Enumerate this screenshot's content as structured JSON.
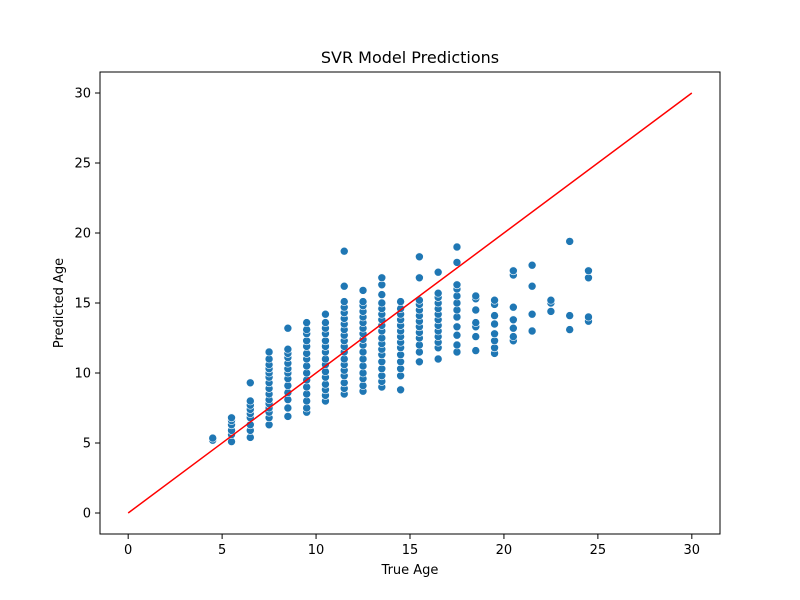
{
  "chart_data": {
    "type": "scatter",
    "title": "SVR Model Predictions",
    "xlabel": "True Age",
    "ylabel": "Predicted Age",
    "xlim": [
      -1.5,
      31.5
    ],
    "ylim": [
      -1.5,
      31.5
    ],
    "xticks": [
      0,
      5,
      10,
      15,
      20,
      25,
      30
    ],
    "yticks": [
      0,
      5,
      10,
      15,
      20,
      25,
      30
    ],
    "grid": false,
    "marker_color": "#1f77b4",
    "line_color": "#ff0000",
    "reference_line": {
      "x": [
        0,
        30
      ],
      "y": [
        0,
        30
      ]
    },
    "points": [
      [
        4.5,
        5.2
      ],
      [
        4.5,
        5.35
      ],
      [
        5.5,
        5.1
      ],
      [
        5.5,
        5.6
      ],
      [
        5.5,
        5.9
      ],
      [
        5.5,
        6.3
      ],
      [
        5.5,
        6.6
      ],
      [
        5.5,
        6.8
      ],
      [
        6.5,
        5.4
      ],
      [
        6.5,
        5.9
      ],
      [
        6.5,
        6.3
      ],
      [
        6.5,
        6.8
      ],
      [
        6.5,
        7.1
      ],
      [
        6.5,
        7.4
      ],
      [
        6.5,
        7.7
      ],
      [
        6.5,
        8.0
      ],
      [
        6.5,
        9.3
      ],
      [
        7.5,
        6.3
      ],
      [
        7.5,
        6.8
      ],
      [
        7.5,
        7.2
      ],
      [
        7.5,
        7.5
      ],
      [
        7.5,
        7.8
      ],
      [
        7.5,
        8.1
      ],
      [
        7.5,
        8.5
      ],
      [
        7.5,
        8.9
      ],
      [
        7.5,
        9.3
      ],
      [
        7.5,
        9.7
      ],
      [
        7.5,
        10.0
      ],
      [
        7.5,
        10.3
      ],
      [
        7.5,
        10.6
      ],
      [
        7.5,
        11.0
      ],
      [
        7.5,
        11.5
      ],
      [
        8.5,
        6.9
      ],
      [
        8.5,
        7.5
      ],
      [
        8.5,
        8.1
      ],
      [
        8.5,
        8.6
      ],
      [
        8.5,
        9.1
      ],
      [
        8.5,
        9.6
      ],
      [
        8.5,
        10.0
      ],
      [
        8.5,
        10.3
      ],
      [
        8.5,
        10.7
      ],
      [
        8.5,
        11.1
      ],
      [
        8.5,
        11.4
      ],
      [
        8.5,
        11.7
      ],
      [
        8.5,
        13.2
      ],
      [
        9.5,
        7.2
      ],
      [
        9.5,
        7.5
      ],
      [
        9.5,
        8.0
      ],
      [
        9.5,
        8.5
      ],
      [
        9.5,
        9.0
      ],
      [
        9.5,
        9.5
      ],
      [
        9.5,
        10.0
      ],
      [
        9.5,
        10.5
      ],
      [
        9.5,
        11.0
      ],
      [
        9.5,
        11.4
      ],
      [
        9.5,
        11.9
      ],
      [
        9.5,
        12.3
      ],
      [
        9.5,
        12.8
      ],
      [
        9.5,
        13.1
      ],
      [
        9.5,
        13.6
      ],
      [
        10.5,
        8.0
      ],
      [
        10.5,
        8.4
      ],
      [
        10.5,
        8.8
      ],
      [
        10.5,
        9.2
      ],
      [
        10.5,
        9.7
      ],
      [
        10.5,
        10.1
      ],
      [
        10.5,
        10.6
      ],
      [
        10.5,
        11.0
      ],
      [
        10.5,
        11.5
      ],
      [
        10.5,
        11.9
      ],
      [
        10.5,
        12.3
      ],
      [
        10.5,
        12.8
      ],
      [
        10.5,
        13.2
      ],
      [
        10.5,
        13.6
      ],
      [
        10.5,
        14.2
      ],
      [
        11.5,
        8.5
      ],
      [
        11.5,
        8.9
      ],
      [
        11.5,
        9.3
      ],
      [
        11.5,
        9.8
      ],
      [
        11.5,
        10.2
      ],
      [
        11.5,
        10.6
      ],
      [
        11.5,
        11.0
      ],
      [
        11.5,
        11.5
      ],
      [
        11.5,
        11.9
      ],
      [
        11.5,
        12.3
      ],
      [
        11.5,
        12.7
      ],
      [
        11.5,
        13.1
      ],
      [
        11.5,
        13.5
      ],
      [
        11.5,
        13.9
      ],
      [
        11.5,
        14.3
      ],
      [
        11.5,
        14.7
      ],
      [
        11.5,
        15.1
      ],
      [
        11.5,
        16.2
      ],
      [
        11.5,
        18.7
      ],
      [
        12.5,
        8.7
      ],
      [
        12.5,
        9.1
      ],
      [
        12.5,
        9.6
      ],
      [
        12.5,
        10.0
      ],
      [
        12.5,
        10.5
      ],
      [
        12.5,
        11.0
      ],
      [
        12.5,
        11.5
      ],
      [
        12.5,
        12.0
      ],
      [
        12.5,
        12.4
      ],
      [
        12.5,
        12.8
      ],
      [
        12.5,
        13.2
      ],
      [
        12.5,
        13.6
      ],
      [
        12.5,
        14.0
      ],
      [
        12.5,
        14.4
      ],
      [
        12.5,
        14.8
      ],
      [
        12.5,
        15.1
      ],
      [
        12.5,
        15.9
      ],
      [
        13.5,
        9.0
      ],
      [
        13.5,
        9.4
      ],
      [
        13.5,
        9.8
      ],
      [
        13.5,
        10.3
      ],
      [
        13.5,
        10.8
      ],
      [
        13.5,
        11.3
      ],
      [
        13.5,
        11.7
      ],
      [
        13.5,
        12.1
      ],
      [
        13.5,
        12.5
      ],
      [
        13.5,
        13.0
      ],
      [
        13.5,
        13.4
      ],
      [
        13.5,
        13.8
      ],
      [
        13.5,
        14.2
      ],
      [
        13.5,
        14.6
      ],
      [
        13.5,
        15.0
      ],
      [
        13.5,
        15.6
      ],
      [
        13.5,
        16.3
      ],
      [
        13.5,
        16.8
      ],
      [
        14.5,
        8.8
      ],
      [
        14.5,
        9.8
      ],
      [
        14.5,
        10.3
      ],
      [
        14.5,
        10.8
      ],
      [
        14.5,
        11.3
      ],
      [
        14.5,
        11.8
      ],
      [
        14.5,
        12.2
      ],
      [
        14.5,
        12.6
      ],
      [
        14.5,
        13.0
      ],
      [
        14.5,
        13.4
      ],
      [
        14.5,
        13.8
      ],
      [
        14.5,
        14.2
      ],
      [
        14.5,
        14.6
      ],
      [
        14.5,
        15.1
      ],
      [
        15.5,
        10.8
      ],
      [
        15.5,
        11.5
      ],
      [
        15.5,
        12.0
      ],
      [
        15.5,
        12.5
      ],
      [
        15.5,
        12.9
      ],
      [
        15.5,
        13.3
      ],
      [
        15.5,
        13.7
      ],
      [
        15.5,
        14.1
      ],
      [
        15.5,
        14.5
      ],
      [
        15.5,
        14.9
      ],
      [
        15.5,
        15.2
      ],
      [
        15.5,
        16.8
      ],
      [
        15.5,
        18.3
      ],
      [
        16.5,
        11.0
      ],
      [
        16.5,
        11.8
      ],
      [
        16.5,
        12.2
      ],
      [
        16.5,
        12.6
      ],
      [
        16.5,
        13.0
      ],
      [
        16.5,
        13.4
      ],
      [
        16.5,
        13.8
      ],
      [
        16.5,
        14.2
      ],
      [
        16.5,
        14.6
      ],
      [
        16.5,
        15.0
      ],
      [
        16.5,
        15.4
      ],
      [
        16.5,
        15.7
      ],
      [
        16.5,
        17.2
      ],
      [
        17.5,
        11.5
      ],
      [
        17.5,
        12.0
      ],
      [
        17.5,
        12.7
      ],
      [
        17.5,
        13.3
      ],
      [
        17.5,
        14.0
      ],
      [
        17.5,
        14.5
      ],
      [
        17.5,
        15.0
      ],
      [
        17.5,
        15.5
      ],
      [
        17.5,
        16.0
      ],
      [
        17.5,
        16.3
      ],
      [
        17.5,
        17.9
      ],
      [
        17.5,
        19.0
      ],
      [
        18.5,
        11.6
      ],
      [
        18.5,
        12.6
      ],
      [
        18.5,
        13.3
      ],
      [
        18.5,
        13.6
      ],
      [
        18.5,
        14.5
      ],
      [
        18.5,
        15.3
      ],
      [
        18.5,
        15.5
      ],
      [
        19.5,
        11.4
      ],
      [
        19.5,
        11.8
      ],
      [
        19.5,
        12.3
      ],
      [
        19.5,
        12.8
      ],
      [
        19.5,
        13.5
      ],
      [
        19.5,
        14.1
      ],
      [
        19.5,
        14.9
      ],
      [
        19.5,
        15.2
      ],
      [
        20.5,
        12.3
      ],
      [
        20.5,
        12.6
      ],
      [
        20.5,
        13.2
      ],
      [
        20.5,
        13.8
      ],
      [
        20.5,
        14.7
      ],
      [
        20.5,
        17.0
      ],
      [
        20.5,
        17.3
      ],
      [
        21.5,
        13.0
      ],
      [
        21.5,
        14.2
      ],
      [
        21.5,
        16.2
      ],
      [
        21.5,
        17.7
      ],
      [
        22.5,
        14.4
      ],
      [
        22.5,
        15.0
      ],
      [
        22.5,
        15.2
      ],
      [
        23.5,
        13.1
      ],
      [
        23.5,
        14.1
      ],
      [
        23.5,
        19.4
      ],
      [
        24.5,
        13.7
      ],
      [
        24.5,
        14.0
      ],
      [
        24.5,
        16.8
      ],
      [
        24.5,
        17.3
      ]
    ]
  }
}
